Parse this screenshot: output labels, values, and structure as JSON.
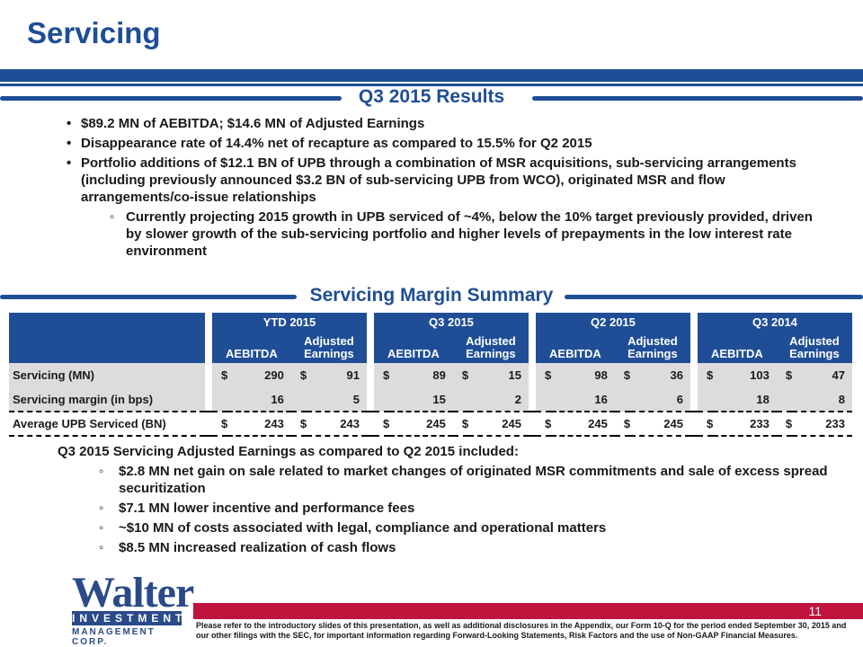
{
  "page": {
    "title": "Servicing",
    "page_number": "11"
  },
  "results": {
    "heading": "Q3 2015 Results",
    "bullets": [
      "$89.2 MN of AEBITDA; $14.6 MN of Adjusted Earnings",
      "Disappearance rate of 14.4% net of recapture as compared to 15.5% for Q2 2015",
      "Portfolio additions of $12.1 BN of UPB through a combination of MSR acquisitions, sub-servicing arrangements (including previously announced $3.2 BN of sub-servicing UPB from WCO), originated MSR and flow arrangements/co-issue relationships"
    ],
    "sub_bullets": [
      "Currently projecting 2015 growth in UPB serviced of ~4%, below the 10% target previously provided, driven by slower growth of the sub-servicing portfolio and higher levels of prepayments in the low interest rate environment"
    ]
  },
  "margin": {
    "heading": "Servicing Margin Summary",
    "periods": [
      "YTD 2015",
      "Q3 2015",
      "Q2 2015",
      "Q3 2014"
    ],
    "col_a": "AEBITDA",
    "col_b_line1": "Adjusted",
    "col_b_line2": "Earnings",
    "rows": [
      {
        "label": "Servicing (MN)",
        "cells": [
          [
            "$",
            "290",
            "$",
            "91"
          ],
          [
            "$",
            "89",
            "$",
            "15"
          ],
          [
            "$",
            "98",
            "$",
            "36"
          ],
          [
            "$",
            "103",
            "$",
            "47"
          ]
        ]
      },
      {
        "label": "Servicing margin (in bps)",
        "cells": [
          [
            "",
            "16",
            "",
            "5"
          ],
          [
            "",
            "15",
            "",
            "2"
          ],
          [
            "",
            "16",
            "",
            "6"
          ],
          [
            "",
            "18",
            "",
            "8"
          ]
        ]
      },
      {
        "label": "Average UPB Serviced (BN)",
        "cells": [
          [
            "$",
            "243",
            "$",
            "243"
          ],
          [
            "$",
            "245",
            "$",
            "245"
          ],
          [
            "$",
            "245",
            "$",
            "245"
          ],
          [
            "$",
            "233",
            "$",
            "233"
          ]
        ]
      }
    ]
  },
  "notes": {
    "heading": "Q3 2015 Servicing Adjusted Earnings as compared to Q2 2015 included:",
    "items": [
      "$2.8 MN net gain on sale related to market changes of originated MSR commitments and sale of excess spread securitization",
      "$7.1 MN lower incentive and performance fees",
      "~$10 MN of costs associated with legal, compliance and operational matters",
      "$8.5 MN increased realization of cash flows"
    ]
  },
  "logo": {
    "word": "Walter",
    "band": "INVESTMENT",
    "corp": "MANAGEMENT CORP."
  },
  "footer": {
    "text": "Please refer to the introductory slides of this presentation, as well as additional disclosures in the Appendix, our Form 10-Q for the period ended September 30, 2015 and our other filings with the SEC, for important information regarding Forward-Looking Statements, Risk Factors and the use of Non-GAAP Financial Measures."
  },
  "colors": {
    "brand_blue": "#1f4e96",
    "accent_red": "#c0143c",
    "row_gray": "#dcdcdc"
  }
}
